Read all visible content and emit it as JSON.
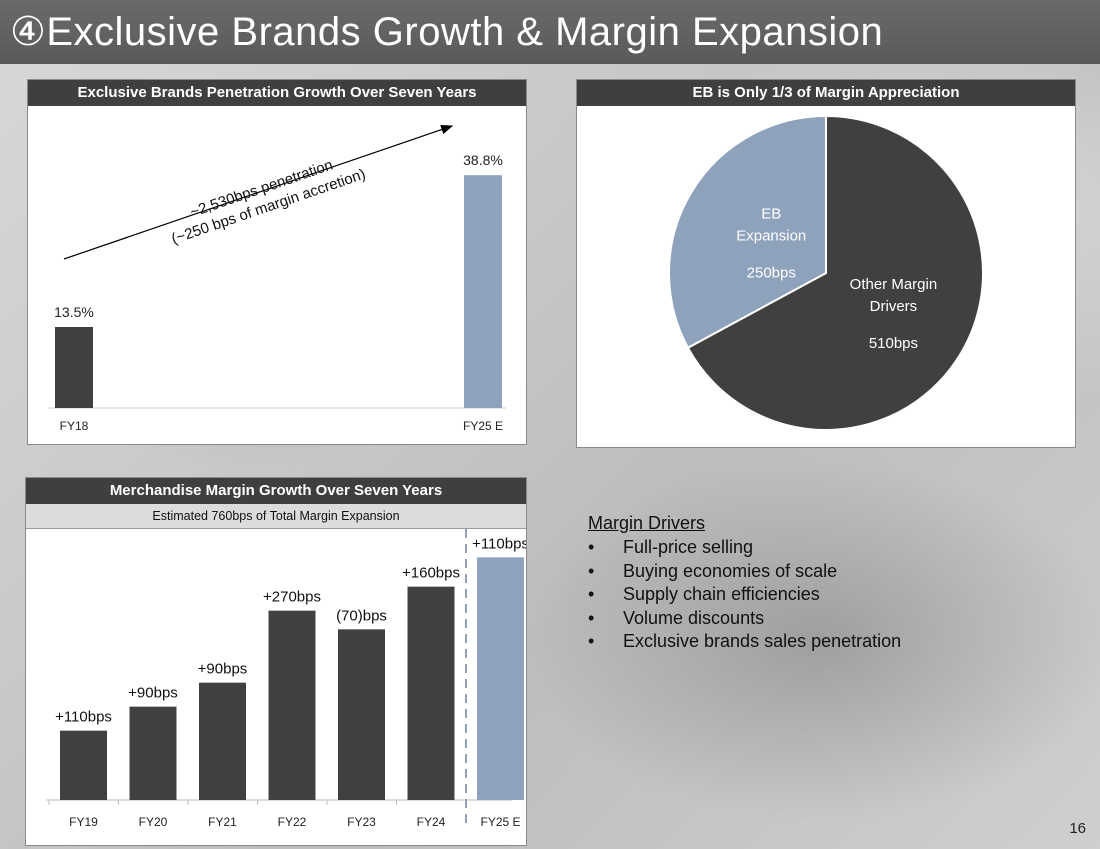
{
  "title": "④Exclusive Brands Growth & Margin Expansion",
  "page_number": "16",
  "colors": {
    "dark": "#404040",
    "accent": "#8ea2bb",
    "header": "#3f3f3f"
  },
  "chart_data": [
    {
      "type": "bar",
      "title": "Exclusive Brands Penetration Growth Over Seven Years",
      "categories": [
        "FY18",
        "FY25 E"
      ],
      "values": [
        13.5,
        38.8
      ],
      "value_labels": [
        "13.5%",
        "38.8%"
      ],
      "ylim": [
        0,
        45
      ],
      "annotation_line1": "~2,530bps penetration",
      "annotation_line2": "(~250 bps of margin accretion)"
    },
    {
      "type": "pie",
      "title": "EB is Only 1/3 of Margin Appreciation",
      "slices": [
        {
          "name": "Other Margin Drivers",
          "line1": "Other Margin",
          "line2": "Drivers",
          "value": 510,
          "label": "510bps"
        },
        {
          "name": "EB Expansion",
          "line1": "EB",
          "line2": "Expansion",
          "value": 250,
          "label": "250bps"
        }
      ]
    },
    {
      "type": "bar",
      "title": "Merchandise Margin Growth Over Seven Years",
      "subtitle": "Estimated 760bps of Total Margin Expansion",
      "categories": [
        "FY19",
        "FY20",
        "FY21",
        "FY22",
        "FY23",
        "FY24",
        "FY25 E"
      ],
      "values": [
        110,
        90,
        90,
        270,
        -70,
        160,
        110
      ],
      "value_labels": [
        "+110bps",
        "+90bps",
        "+90bps",
        "+270bps",
        "(70)bps",
        "+160bps",
        "+110bps"
      ],
      "waterfall": true
    }
  ],
  "margin_drivers": {
    "title": "Margin Drivers",
    "bullet": "•",
    "items": [
      "Full-price selling",
      "Buying economies of scale",
      "Supply chain efficiencies",
      "Volume discounts",
      "Exclusive brands sales penetration"
    ]
  }
}
